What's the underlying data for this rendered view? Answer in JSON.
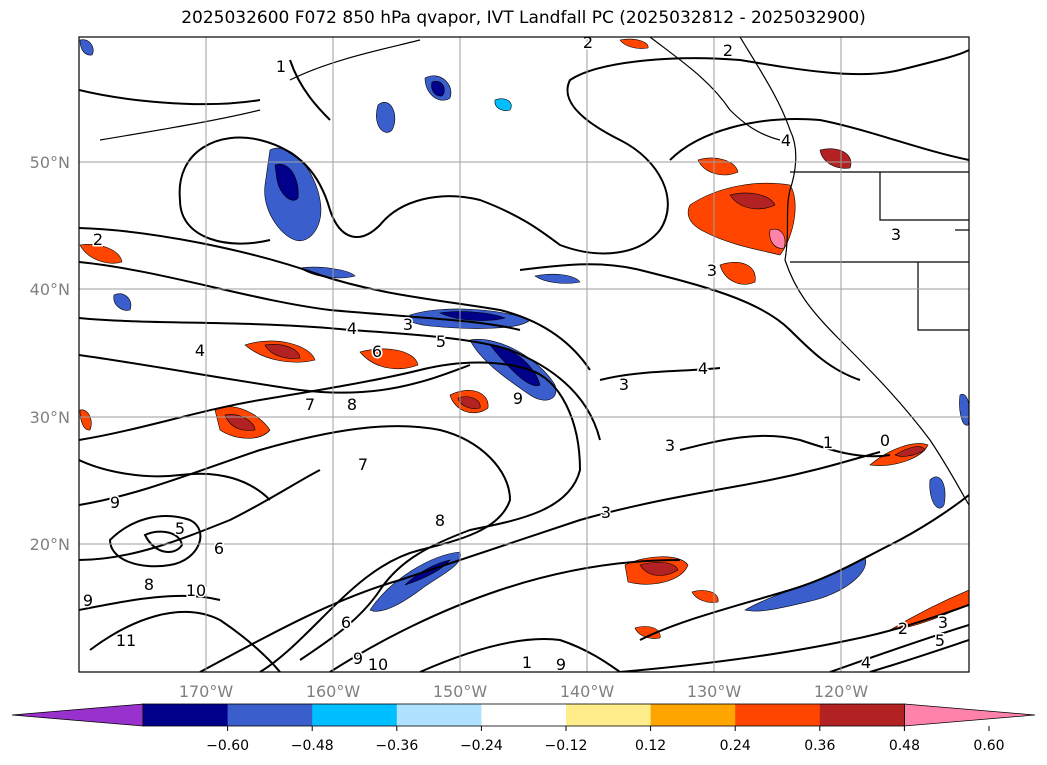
{
  "title": "2025032600 F072 850 hPa qvapor, IVT Landfall PC (2025032812 - 2025032900)",
  "lat_labels": [
    "50°N",
    "40°N",
    "30°N",
    "20°N"
  ],
  "lon_labels": [
    "170°W",
    "160°W",
    "150°W",
    "140°W",
    "130°W",
    "120°W"
  ],
  "colorbar": {
    "tick_labels": [
      "−0.60",
      "−0.48",
      "−0.36",
      "−0.24",
      "−0.12",
      "0.12",
      "0.24",
      "0.36",
      "0.48",
      "0.60"
    ],
    "colors": [
      "#9932cc",
      "#00008b",
      "#3a5fcd",
      "#00bfff",
      "#b0e2ff",
      "#ffffff",
      "#ffec8b",
      "#ffa500",
      "#ff4500",
      "#b22222",
      "#ff82ab"
    ]
  },
  "contour_labels": [
    "2",
    "1",
    "2",
    "2",
    "4",
    "3",
    "4",
    "4",
    "3",
    "6",
    "5",
    "3",
    "7",
    "8",
    "9",
    "3",
    "4",
    "3",
    "1",
    "0",
    "6",
    "7",
    "8",
    "5",
    "9",
    "8",
    "10",
    "9",
    "11",
    "6",
    "9",
    "10",
    "1",
    "9",
    "3",
    "2",
    "3",
    "5",
    "4"
  ]
}
